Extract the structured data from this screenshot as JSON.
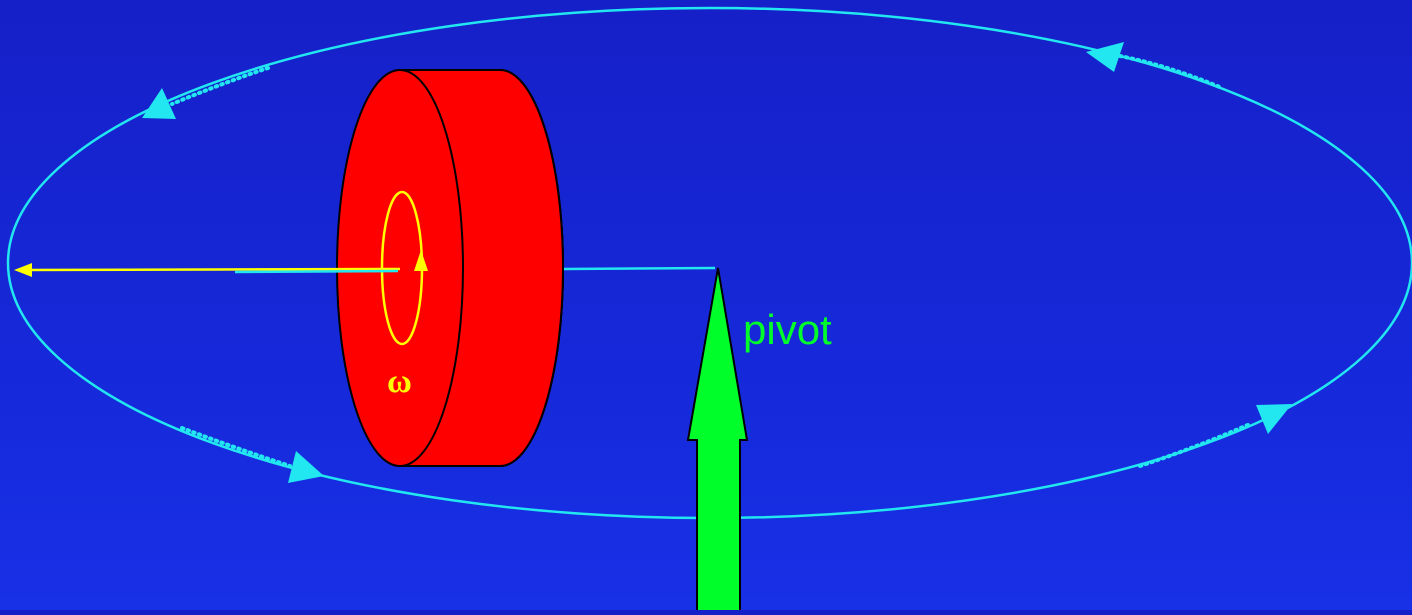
{
  "labels": {
    "pivot": "pivot",
    "omega": "ω"
  },
  "colors": {
    "background": "#1a22cc",
    "orbit": "#22e6f0",
    "disk": "#ff0000",
    "disk_outline": "#000000",
    "spin": "#ffff00",
    "pivot_arrow": "#00ff2a"
  },
  "icons": {
    "disk": "spinning-wheel-disk",
    "spin_loop": "rotation-loop-icon",
    "pivot": "up-arrow-icon"
  }
}
